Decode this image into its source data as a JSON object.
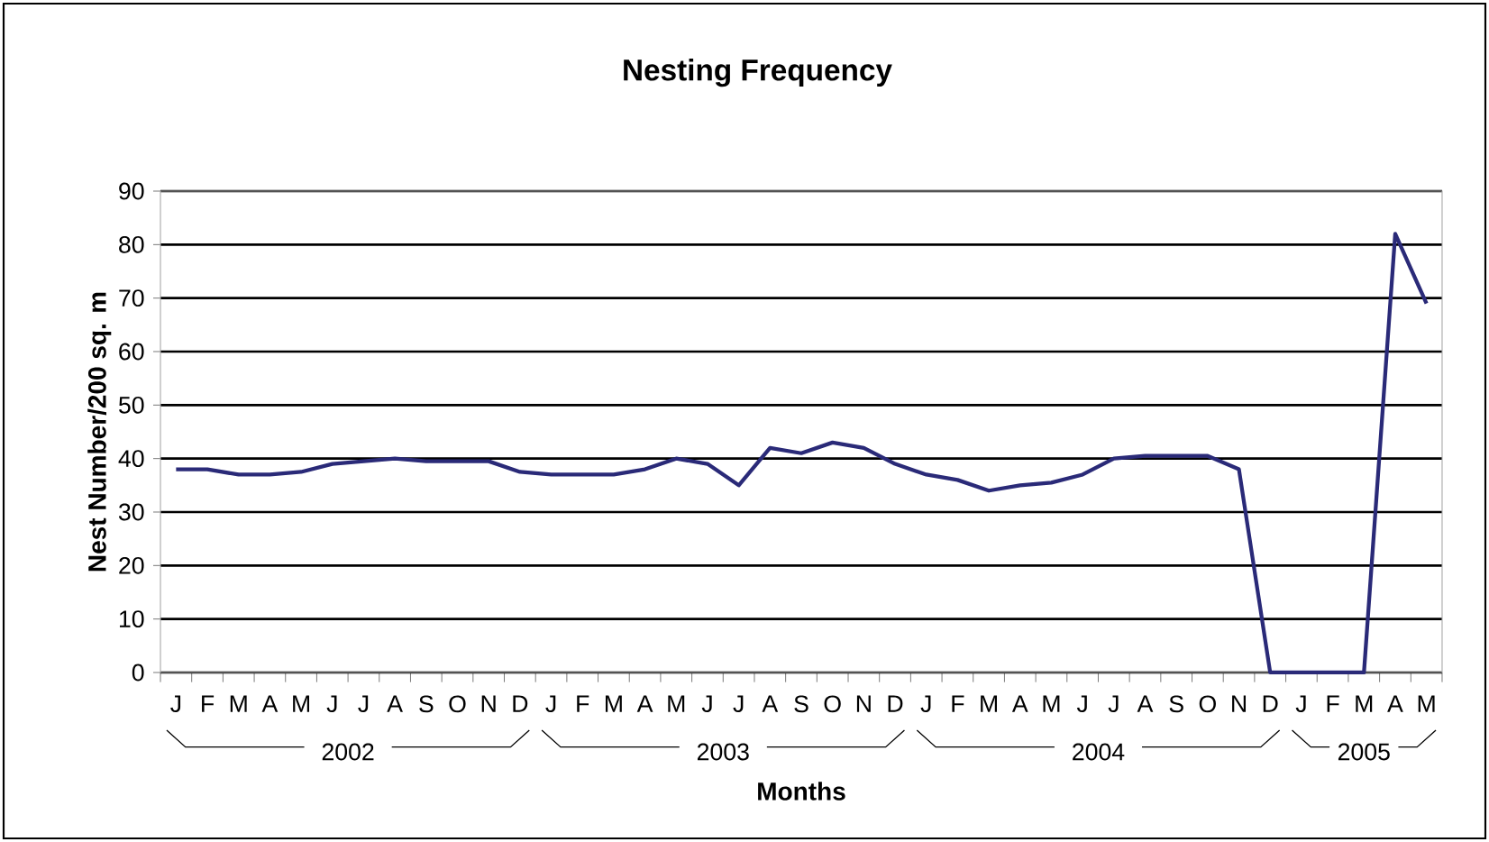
{
  "chart_data": {
    "type": "line",
    "title": "Nesting Frequency",
    "xlabel": "Months",
    "ylabel": "Nest Number/200 sq. m",
    "categories": [
      "J",
      "F",
      "M",
      "A",
      "M",
      "J",
      "J",
      "A",
      "S",
      "O",
      "N",
      "D",
      "J",
      "F",
      "M",
      "A",
      "M",
      "J",
      "J",
      "A",
      "S",
      "O",
      "N",
      "D",
      "J",
      "F",
      "M",
      "A",
      "M",
      "J",
      "J",
      "A",
      "S",
      "O",
      "N",
      "D",
      "J",
      "F",
      "M",
      "A",
      "M"
    ],
    "series": [
      {
        "color": "#2a2a78",
        "values": [
          38,
          38,
          37,
          37,
          37.5,
          39,
          39.5,
          40,
          39.5,
          39.5,
          39.5,
          37.5,
          37,
          37,
          37,
          38,
          40,
          39,
          35,
          42,
          41,
          43,
          42,
          39,
          37,
          36,
          34,
          35,
          35.5,
          37,
          40,
          40.5,
          40.5,
          40.5,
          38,
          0,
          0,
          0,
          0,
          82,
          69
        ]
      }
    ],
    "ylim": [
      0,
      90
    ],
    "yticks": [
      0,
      10,
      20,
      30,
      40,
      50,
      60,
      70,
      80,
      90
    ],
    "grid": "y",
    "annotations": [
      "2002",
      "2003",
      "2004",
      "2005"
    ]
  }
}
